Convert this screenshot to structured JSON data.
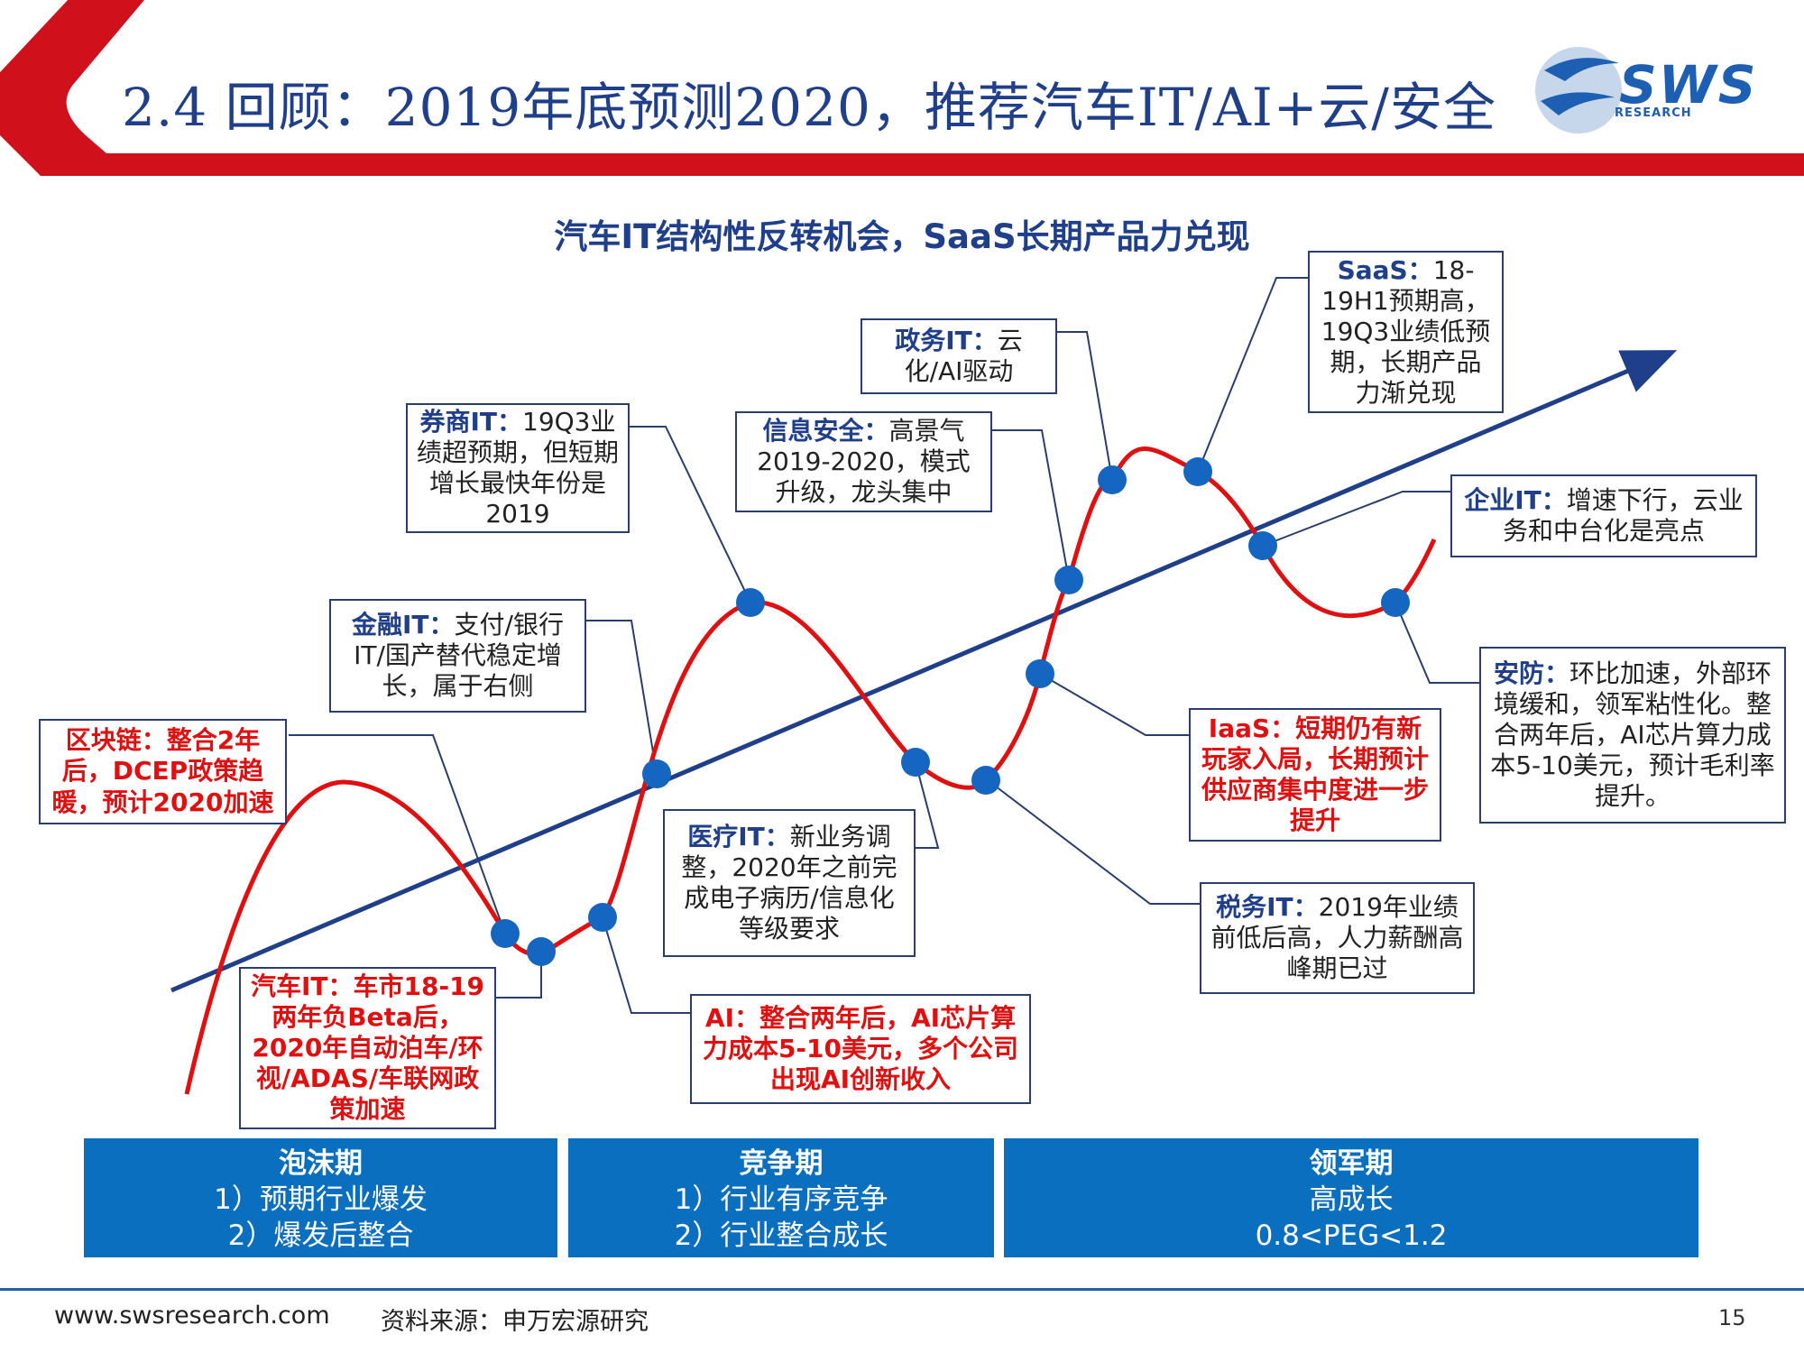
{
  "header": {
    "title": "2.4 回顾：2019年底预测2020，推荐汽车IT/AI+云/安全",
    "logo": "SWS",
    "logo_sub": "RESEARCH",
    "accent_color": "#d0111b",
    "brand_color": "#1d5fb3"
  },
  "diagram": {
    "subtitle": "汽车IT结构性反转机会，SaaS长期产品力兑现",
    "trend_line_color": "#1f3f8a",
    "cycle_curve_color": "#e01010",
    "callouts": [
      {
        "label": "区块链：",
        "text": "整合2年后，DCEP政策趋暖，预计2020加速",
        "style": "red"
      },
      {
        "label": "汽车IT：",
        "text": "车市18-19两年负Beta后，2020年自动泊车/环视/ADAS/车联网政策加速",
        "style": "red"
      },
      {
        "label": "金融IT：",
        "text": "支付/银行IT/国产替代稳定增长，属于右侧",
        "style": "normal"
      },
      {
        "label": "券商IT：",
        "text": "19Q3业绩超预期，但短期增长最快年份是2019",
        "style": "normal"
      },
      {
        "label": "医疗IT：",
        "text": "新业务调整，2020年之前完成电子病历/信息化等级要求",
        "style": "normal"
      },
      {
        "label": "AI：",
        "text": "整合两年后，AI芯片算力成本5-10美元，多个公司出现AI创新收入",
        "style": "red"
      },
      {
        "label": "信息安全：",
        "text": "高景气2019-2020，模式升级，龙头集中",
        "style": "normal"
      },
      {
        "label": "政务IT：",
        "text": "云化/AI驱动",
        "style": "normal"
      },
      {
        "label": "SaaS：",
        "text": "18-19H1预期高，19Q3业绩低预期，长期产品力渐兑现",
        "style": "normal"
      },
      {
        "label": "企业IT：",
        "text": "增速下行，云业务和中台化是亮点",
        "style": "normal"
      },
      {
        "label": "安防：",
        "text": "环比加速，外部环境缓和，领军粘性化。整合两年后，AI芯片算力成本5-10美元，预计毛利率提升。",
        "style": "normal"
      },
      {
        "label": "IaaS：",
        "text": "短期仍有新玩家入局，长期预计供应商集中度进一步提升",
        "style": "red"
      },
      {
        "label": "税务IT：",
        "text": "2019年业绩前低后高，人力薪酬高峰期已过",
        "style": "normal"
      }
    ]
  },
  "phases": [
    {
      "name": "泡沫期",
      "lines": [
        "1）预期行业爆发",
        "2）爆发后整合"
      ]
    },
    {
      "name": "竞争期",
      "lines": [
        "1）行业有序竞争",
        "2）行业整合成长"
      ]
    },
    {
      "name": "领军期",
      "lines": [
        "高成长",
        "0.8<PEG<1.2"
      ]
    }
  ],
  "footer": {
    "website": "www.swsresearch.com",
    "source": "资料来源：申万宏源研究",
    "page": "15"
  }
}
